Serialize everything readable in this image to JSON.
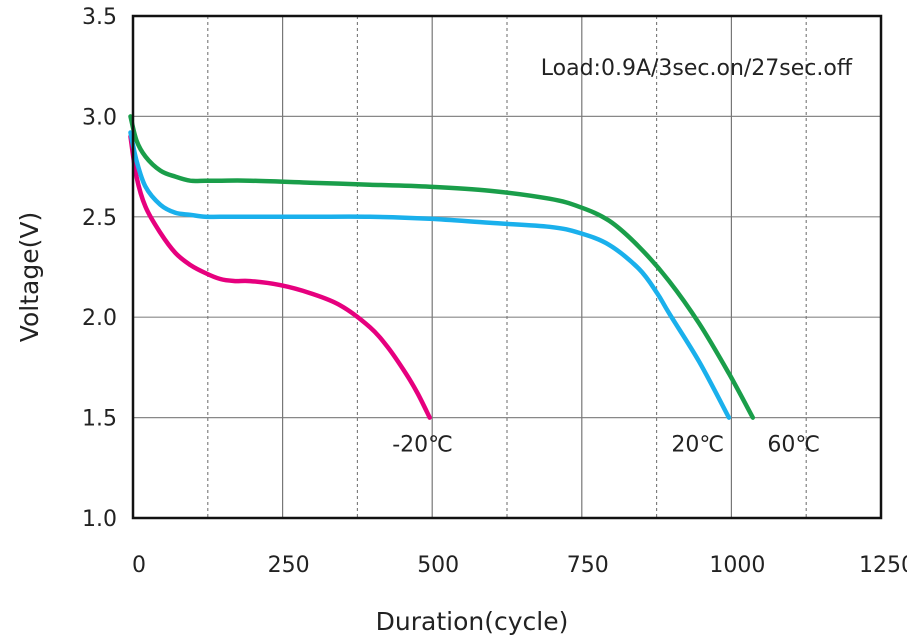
{
  "chart_data": {
    "type": "line",
    "title": "",
    "xlabel": "Duration(cycle)",
    "ylabel": "Voltage(V)",
    "xlim": [
      0,
      1250
    ],
    "ylim": [
      1.0,
      3.5
    ],
    "x_ticks": [
      "0",
      "250",
      "500",
      "750",
      "1000",
      "1250"
    ],
    "y_ticks": [
      "1.0",
      "1.5",
      "2.0",
      "2.5",
      "3.0",
      "3.5"
    ],
    "annotation": "Load:0.9A/3sec.on/27sec.off",
    "grid": "vertical dotted at 125 intervals, horizontal solid at each y tick",
    "series": [
      {
        "name": "-20℃",
        "color": "#e6007e",
        "x": [
          0,
          10,
          25,
          50,
          75,
          100,
          125,
          150,
          175,
          200,
          250,
          300,
          350,
          400,
          430,
          460,
          480,
          500
        ],
        "y": [
          2.9,
          2.7,
          2.55,
          2.42,
          2.32,
          2.26,
          2.22,
          2.19,
          2.18,
          2.18,
          2.16,
          2.12,
          2.06,
          1.95,
          1.85,
          1.72,
          1.62,
          1.5
        ]
      },
      {
        "name": "20℃",
        "color": "#1ab0ec",
        "x": [
          0,
          10,
          25,
          50,
          75,
          100,
          125,
          150,
          200,
          300,
          400,
          500,
          600,
          700,
          750,
          800,
          850,
          880,
          900,
          950,
          1000
        ],
        "y": [
          2.92,
          2.78,
          2.65,
          2.56,
          2.52,
          2.51,
          2.5,
          2.5,
          2.5,
          2.5,
          2.5,
          2.49,
          2.47,
          2.45,
          2.42,
          2.36,
          2.24,
          2.12,
          2.02,
          1.78,
          1.5
        ]
      },
      {
        "name": "60℃",
        "color": "#1a9e4a",
        "x": [
          0,
          10,
          25,
          50,
          75,
          100,
          125,
          150,
          200,
          300,
          400,
          500,
          600,
          700,
          750,
          800,
          850,
          900,
          950,
          1000,
          1040
        ],
        "y": [
          3.0,
          2.88,
          2.8,
          2.73,
          2.7,
          2.68,
          2.68,
          2.68,
          2.68,
          2.67,
          2.66,
          2.65,
          2.63,
          2.59,
          2.55,
          2.48,
          2.35,
          2.18,
          1.97,
          1.72,
          1.5
        ]
      }
    ],
    "series_labels": [
      {
        "text": "-20℃",
        "x": 500,
        "y": 1.5
      },
      {
        "text": "20℃",
        "x": 1000,
        "y": 1.5
      },
      {
        "text": "60℃",
        "x": 1040,
        "y": 1.5
      }
    ]
  }
}
